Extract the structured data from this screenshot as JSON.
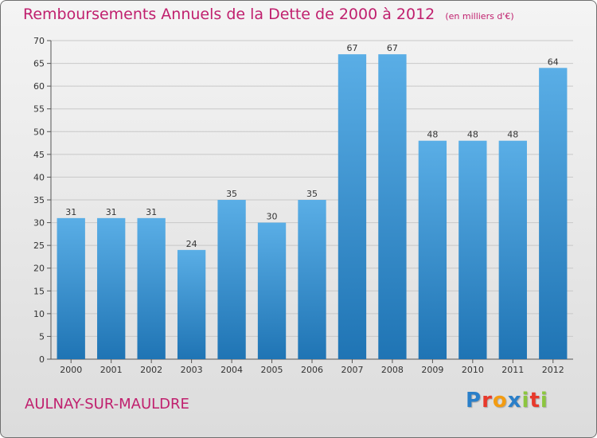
{
  "title": "Remboursements Annuels de la Dette de 2000 à 2012",
  "unit_note": "(en milliers d'€)",
  "commune": "AULNAY-SUR-MAULDRE",
  "logo": {
    "letters": [
      {
        "char": "P",
        "color": "#2a7fc9"
      },
      {
        "char": "r",
        "color": "#e8392b"
      },
      {
        "char": "o",
        "color": "#f39c12"
      },
      {
        "char": "x",
        "color": "#2a7fc9"
      },
      {
        "char": "i",
        "color": "#8cc63f"
      },
      {
        "char": "t",
        "color": "#e8392b"
      },
      {
        "char": "i",
        "color": "#8cc63f"
      }
    ]
  },
  "colors": {
    "title": "#c0206e",
    "bar_top": "#5aaee6",
    "bar_bottom": "#1f74b4",
    "grid": "#c8c8c8",
    "axis": "#555555",
    "text": "#333333"
  },
  "chart_data": {
    "type": "bar",
    "title": "Remboursements Annuels de la Dette de 2000 à 2012",
    "xlabel": "",
    "ylabel": "",
    "categories": [
      "2000",
      "2001",
      "2002",
      "2003",
      "2004",
      "2005",
      "2006",
      "2007",
      "2008",
      "2009",
      "2010",
      "2011",
      "2012"
    ],
    "values": [
      31,
      31,
      31,
      24,
      35,
      30,
      35,
      67,
      67,
      48,
      48,
      48,
      64
    ],
    "data_labels": [
      "31",
      "31",
      "31",
      "24",
      "35",
      "30",
      "35",
      "67",
      "67",
      "48",
      "48",
      "48",
      "64"
    ],
    "ylim": [
      0,
      70
    ],
    "yticks": [
      0,
      5,
      10,
      15,
      20,
      25,
      30,
      35,
      40,
      45,
      50,
      55,
      60,
      65,
      70
    ],
    "grid": true,
    "legend": "none"
  }
}
